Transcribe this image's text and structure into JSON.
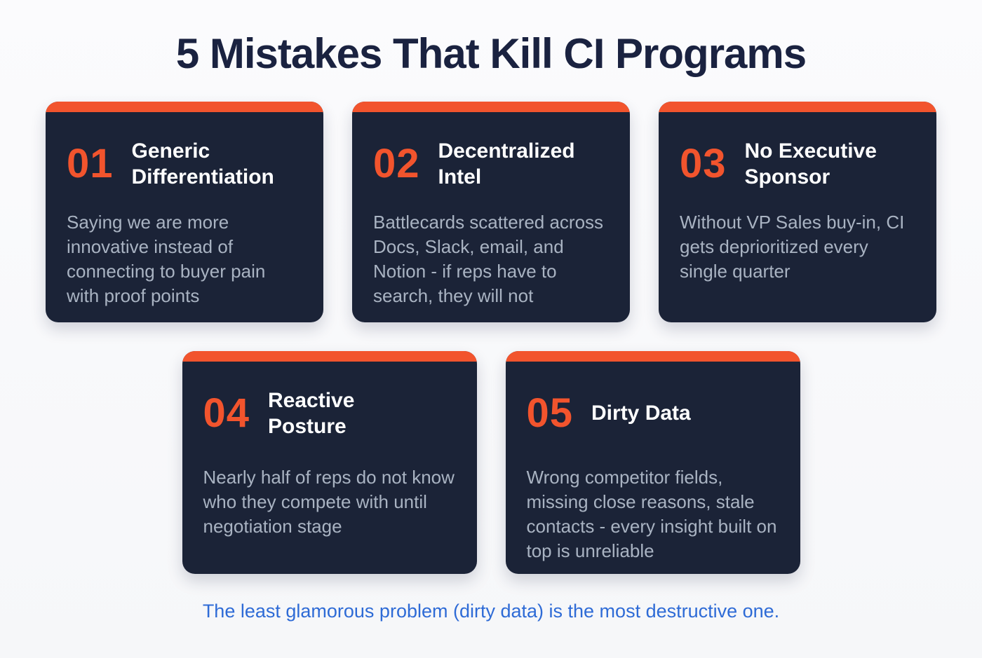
{
  "page": {
    "title": "5 Mistakes That Kill CI Programs",
    "footer": "The least glamorous problem (dirty data) is the most destructive one."
  },
  "cards": [
    {
      "number": "01",
      "title": "Generic Differentiation",
      "body": "Saying we are more innovative instead of connecting to buyer pain with proof points"
    },
    {
      "number": "02",
      "title": "Decentralized Intel",
      "body": "Battlecards scattered across Docs, Slack, email, and Notion - if reps have to search, they will not"
    },
    {
      "number": "03",
      "title": "No Executive Sponsor",
      "body": "Without VP Sales buy-in, CI gets deprioritized every single quarter"
    },
    {
      "number": "04",
      "title": "Reactive Posture",
      "body": "Nearly half of reps do not know who they compete with until negotiation stage"
    },
    {
      "number": "05",
      "title": "Dirty Data",
      "body": "Wrong competitor fields, missing close reasons, stale contacts - every insight built on top is unreliable"
    }
  ],
  "colors": {
    "accent_orange": "#F2542D",
    "card_navy": "#1B2337",
    "title_navy": "#1A2240",
    "body_gray": "#A9B3C2",
    "footer_blue": "#2E6BD6",
    "page_bg": "#F8F9FB"
  }
}
